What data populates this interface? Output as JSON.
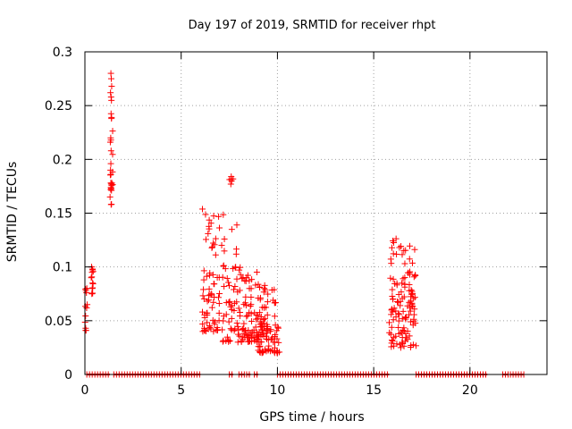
{
  "chart_data": {
    "type": "scatter",
    "title": "Day 197 of 2019, SRMTID for receiver rhpt",
    "xlabel": "GPS time / hours",
    "ylabel": "SRMTID / TECUs",
    "xlim": [
      0,
      24
    ],
    "ylim": [
      0,
      0.3
    ],
    "xticks": [
      0,
      5,
      10,
      15,
      20
    ],
    "xtick_labels": [
      "0",
      "5",
      "10",
      "15",
      "20"
    ],
    "yticks": [
      0,
      0.05,
      0.1,
      0.15,
      0.2,
      0.25,
      0.3
    ],
    "ytick_labels": [
      "0",
      "0.05",
      "0.1",
      "0.15",
      "0.2",
      "0.25",
      "0.3"
    ],
    "grid": true,
    "marker": "+",
    "colors": {
      "points": "#ff0000",
      "grid": "#a0a0a0",
      "axes": "#000000"
    },
    "zero_segments": [
      [
        0.1,
        1.3
      ],
      [
        1.5,
        6.0
      ],
      [
        7.5,
        7.7
      ],
      [
        8.0,
        8.3
      ],
      [
        8.4,
        8.6
      ],
      [
        8.8,
        9.0
      ],
      [
        10.0,
        15.8
      ],
      [
        17.2,
        20.9
      ],
      [
        21.7,
        22.0
      ],
      [
        22.1,
        22.8
      ]
    ],
    "clusters": [
      {
        "name": "t0.1",
        "x_range": [
          0.0,
          0.15
        ],
        "y_range": [
          0.04,
          0.08
        ],
        "count": 6
      },
      {
        "name": "t0.35",
        "x_range": [
          0.3,
          0.45
        ],
        "y_range": [
          0.075,
          0.1
        ],
        "count": 7
      },
      {
        "name": "t1.35",
        "x_range": [
          1.3,
          1.45
        ],
        "y_range": [
          0.158,
          0.28
        ],
        "count": 16
      },
      {
        "name": "t6.5",
        "x_range": [
          6.1,
          7.0
        ],
        "y_range": [
          0.04,
          0.155
        ],
        "count": 70
      },
      {
        "name": "t7.6",
        "x_range": [
          7.1,
          8.0
        ],
        "y_range": [
          0.03,
          0.15
        ],
        "count": 55
      },
      {
        "name": "t7.6-high",
        "x_range": [
          7.5,
          7.7
        ],
        "y_range": [
          0.175,
          0.184
        ],
        "count": 3
      },
      {
        "name": "t8.8",
        "x_range": [
          8.0,
          9.2
        ],
        "y_range": [
          0.03,
          0.1
        ],
        "count": 80
      },
      {
        "name": "t9.6",
        "x_range": [
          9.0,
          10.1
        ],
        "y_range": [
          0.02,
          0.085
        ],
        "count": 90
      },
      {
        "name": "t16.0",
        "x_range": [
          15.8,
          16.2
        ],
        "y_range": [
          0.025,
          0.133
        ],
        "count": 35
      },
      {
        "name": "t16.7",
        "x_range": [
          16.2,
          17.2
        ],
        "y_range": [
          0.025,
          0.12
        ],
        "count": 90
      }
    ],
    "points": [
      [
        0.05,
        0.078
      ],
      [
        0.08,
        0.076
      ],
      [
        0.1,
        0.08
      ],
      [
        0.12,
        0.065
      ],
      [
        0.04,
        0.043
      ],
      [
        0.06,
        0.041
      ],
      [
        0.35,
        0.1
      ],
      [
        0.37,
        0.095
      ],
      [
        0.33,
        0.09
      ],
      [
        0.4,
        0.085
      ],
      [
        0.38,
        0.08
      ],
      [
        0.36,
        0.075
      ],
      [
        0.4,
        0.098
      ],
      [
        1.35,
        0.28
      ],
      [
        1.37,
        0.275
      ],
      [
        1.33,
        0.262
      ],
      [
        1.36,
        0.258
      ],
      [
        1.38,
        0.238
      ],
      [
        1.34,
        0.22
      ],
      [
        1.35,
        0.218
      ],
      [
        1.36,
        0.208
      ],
      [
        1.33,
        0.19
      ],
      [
        1.35,
        0.186
      ],
      [
        1.37,
        0.173
      ],
      [
        1.34,
        0.172
      ],
      [
        1.36,
        0.158
      ],
      [
        1.39,
        0.268
      ],
      [
        1.32,
        0.216
      ],
      [
        1.4,
        0.178
      ],
      [
        7.6,
        0.184
      ],
      [
        7.62,
        0.18
      ],
      [
        7.58,
        0.177
      ]
    ]
  }
}
